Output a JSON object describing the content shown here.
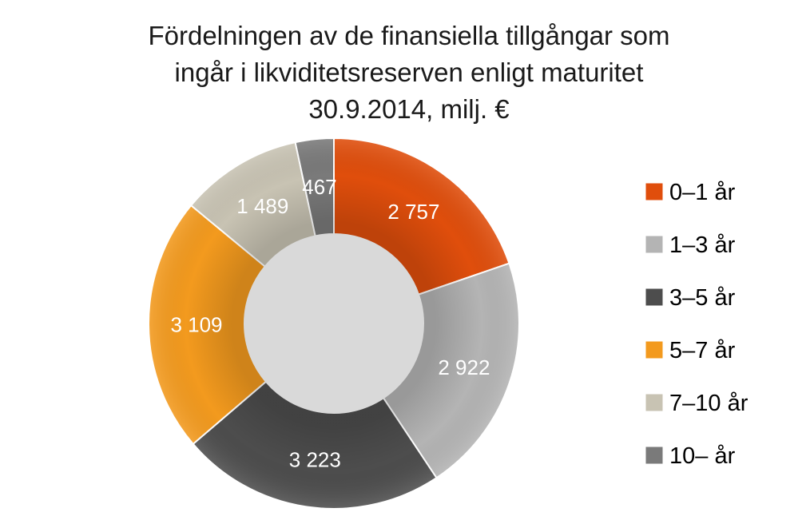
{
  "chart_data": {
    "type": "pie",
    "variant": "donut",
    "title_lines": [
      "Fördelningen av de finansiella tillgångar som",
      "ingår i likviditetsreserven enligt maturitet",
      "30.9.2014, milj. €"
    ],
    "series": [
      {
        "categories": [
          "0–1 år",
          "1–3 år",
          "3–5 år",
          "5–7 år",
          "7–10 år",
          "10– år"
        ],
        "values": [
          2757,
          2922,
          3223,
          3109,
          1489,
          467
        ],
        "labels": [
          "2 757",
          "2 922",
          "3 223",
          "3 109",
          "1 489",
          "467"
        ],
        "colors": [
          "#e04e0c",
          "#b4b4b4",
          "#4d4d4d",
          "#f39a1e",
          "#c8c3b3",
          "#7a7a7a"
        ]
      }
    ],
    "legend": "right"
  }
}
